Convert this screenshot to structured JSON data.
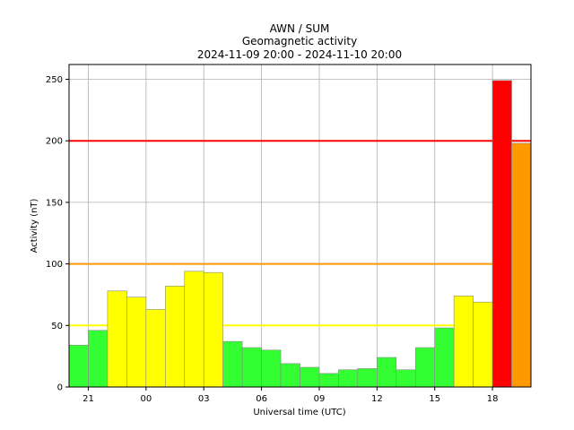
{
  "chart_data": {
    "type": "bar",
    "title_lines": [
      "AWN / SUM",
      "Geomagnetic activity",
      "2024-11-09 20:00 - 2024-11-10 20:00"
    ],
    "xlabel": "Universal time (UTC)",
    "ylabel": "Activity (nT)",
    "ylim": [
      0,
      262
    ],
    "xlim_hours": [
      20.0,
      44.0
    ],
    "grid": true,
    "x_ticks": [
      {
        "hour": 21,
        "label": "21"
      },
      {
        "hour": 24,
        "label": "00"
      },
      {
        "hour": 27,
        "label": "03"
      },
      {
        "hour": 30,
        "label": "06"
      },
      {
        "hour": 33,
        "label": "09"
      },
      {
        "hour": 36,
        "label": "12"
      },
      {
        "hour": 39,
        "label": "15"
      },
      {
        "hour": 42,
        "label": "18"
      }
    ],
    "y_ticks": [
      0,
      50,
      100,
      150,
      200,
      250
    ],
    "thresholds": [
      {
        "value": 50,
        "color": "#ffff00"
      },
      {
        "value": 100,
        "color": "#ff9900"
      },
      {
        "value": 200,
        "color": "#ff0000"
      }
    ],
    "level_colors": {
      "quiet": "#33ff33",
      "active": "#ffff00",
      "storm": "#ff9900",
      "severe": "#ff0000"
    },
    "bars": [
      {
        "hour": 20,
        "value": 34
      },
      {
        "hour": 21,
        "value": 46
      },
      {
        "hour": 22,
        "value": 78
      },
      {
        "hour": 23,
        "value": 73
      },
      {
        "hour": 24,
        "value": 63
      },
      {
        "hour": 25,
        "value": 82
      },
      {
        "hour": 26,
        "value": 94
      },
      {
        "hour": 27,
        "value": 93
      },
      {
        "hour": 28,
        "value": 37
      },
      {
        "hour": 29,
        "value": 32
      },
      {
        "hour": 30,
        "value": 30
      },
      {
        "hour": 31,
        "value": 19
      },
      {
        "hour": 32,
        "value": 16
      },
      {
        "hour": 33,
        "value": 11
      },
      {
        "hour": 34,
        "value": 14
      },
      {
        "hour": 35,
        "value": 15
      },
      {
        "hour": 36,
        "value": 24
      },
      {
        "hour": 37,
        "value": 14
      },
      {
        "hour": 38,
        "value": 32
      },
      {
        "hour": 39,
        "value": 48
      },
      {
        "hour": 40,
        "value": 74
      },
      {
        "hour": 41,
        "value": 69
      },
      {
        "hour": 42,
        "value": 249
      },
      {
        "hour": 43,
        "value": 198
      }
    ]
  }
}
